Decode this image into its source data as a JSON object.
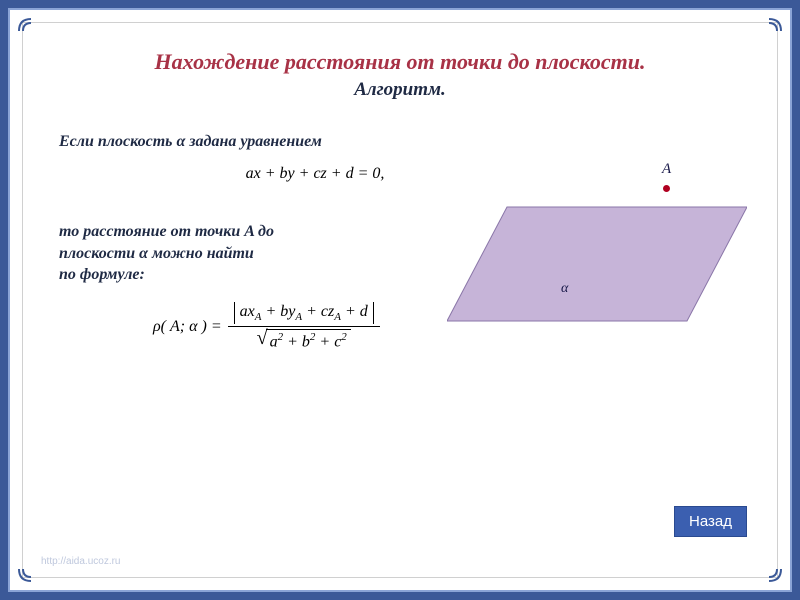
{
  "title": "Нахождение расстояния от точки до плоскости.",
  "subtitle": "Алгоритм.",
  "intro": "Если плоскость α задана уравнением",
  "plane_equation": "ax + by + cz + d = 0,",
  "body_line1": "то расстояние от точки A до",
  "body_line2": "плоскости α можно найти",
  "body_line3": "по формуле:",
  "formula": {
    "left": "ρ( A; α ) =",
    "num_inner": "ax<sub>A</sub> + by<sub>A</sub> + cz<sub>A</sub> + d",
    "den_inner": "a<sup>2</sup> + b<sup>2</sup> + c<sup>2</sup>"
  },
  "diagram": {
    "point_label": "A",
    "plane_label": "α",
    "plane_fill": "#c6b4d8",
    "plane_stroke": "#8a76a8",
    "point_color": "#b00020"
  },
  "back_button": "Назад",
  "watermark": "http://aida.ucoz.ru",
  "colors": {
    "frame_outer": "#3b5998",
    "frame_line": "#8aa4d6",
    "title_color": "#a83246",
    "text_color": "#1f2a44",
    "btn_bg": "#3b5fb0"
  }
}
